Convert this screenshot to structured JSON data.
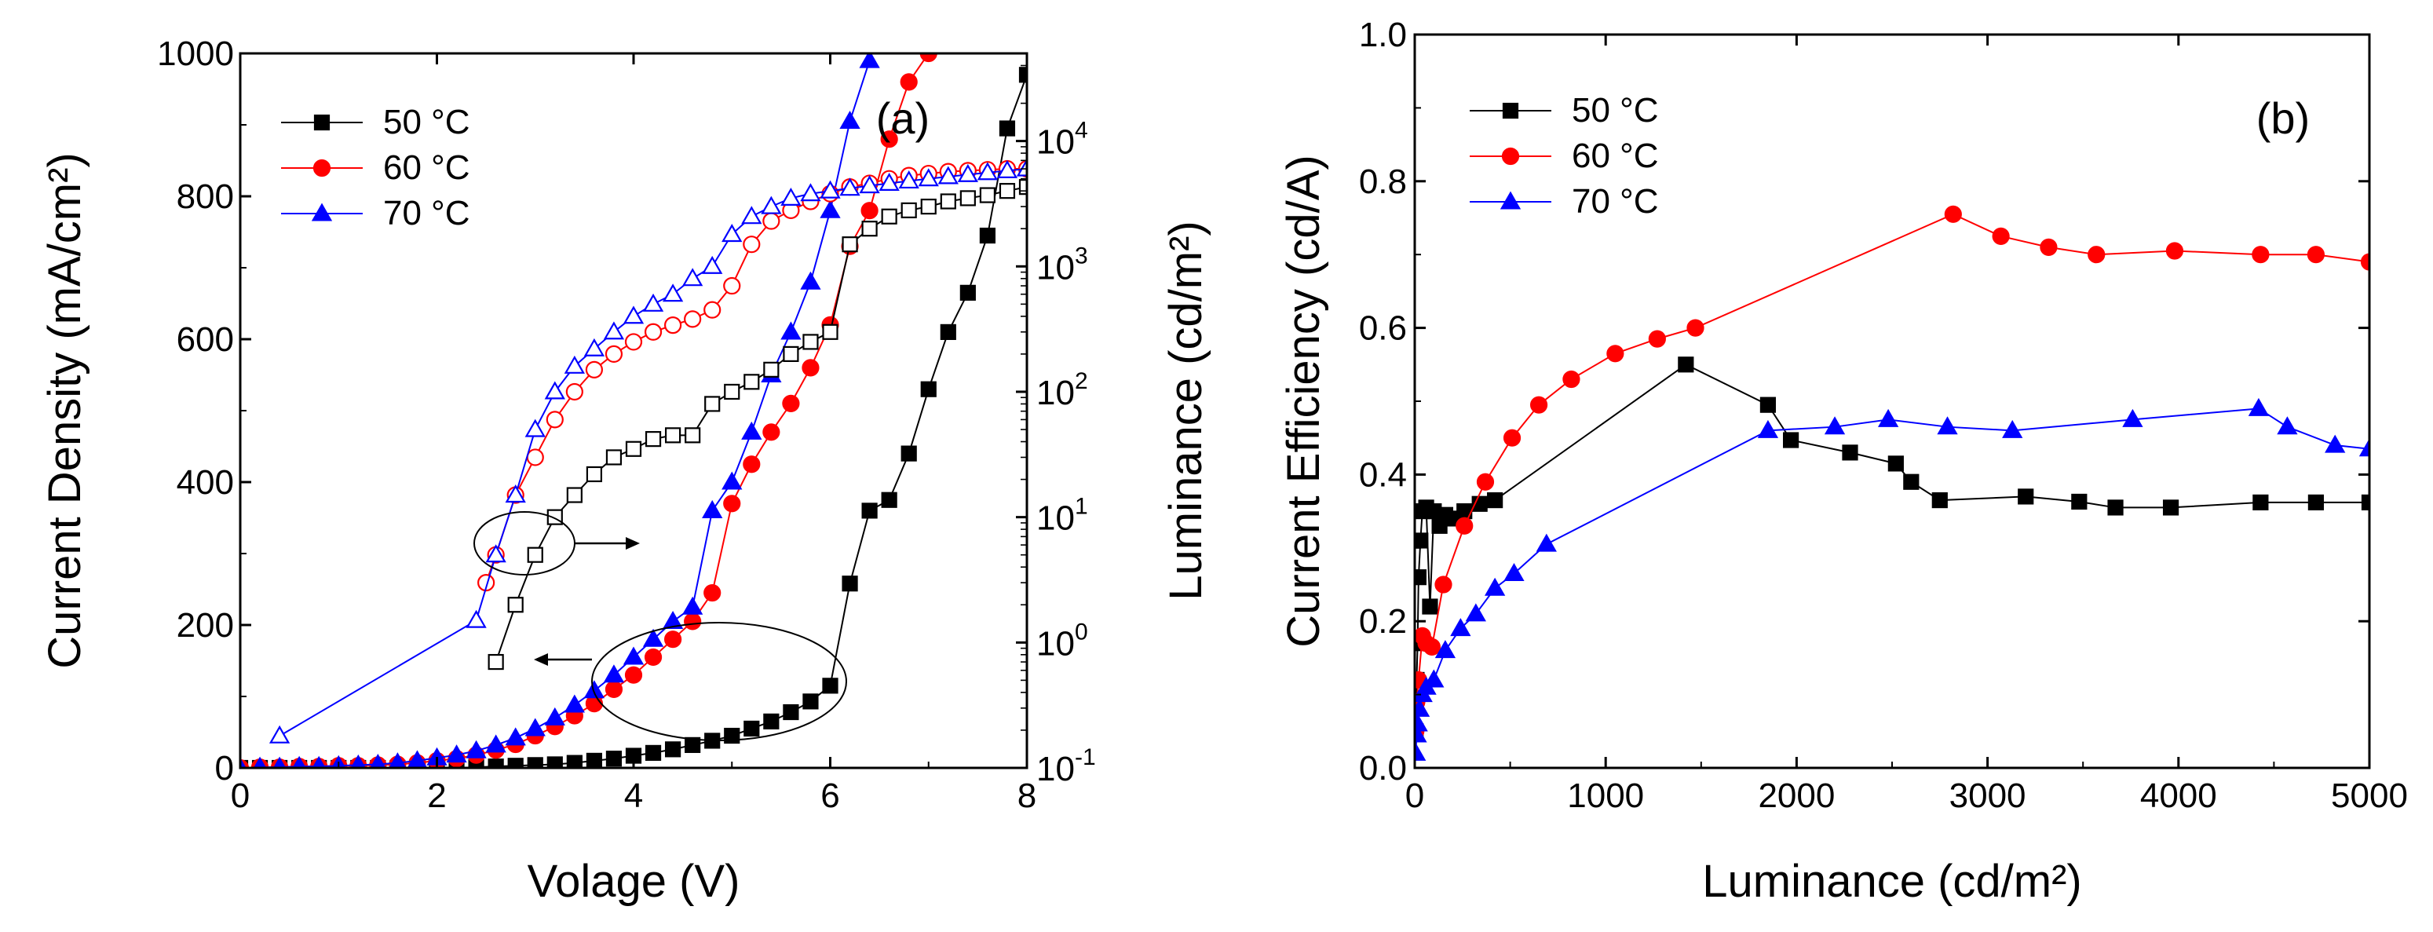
{
  "chart_data": [
    {
      "type": "line",
      "panel_label": "(a)",
      "xlabel": "Volage (V)",
      "ylabel": "Current Density (mA/cm²)",
      "ylabel_right": "Luminance (cd/m²)",
      "xlim": [
        0,
        8
      ],
      "ylim": [
        0,
        1000
      ],
      "ylim_right_log": [
        0.1,
        50000
      ],
      "x_ticks": [
        "0",
        "2",
        "4",
        "6",
        "8"
      ],
      "y_ticks": [
        "0",
        "200",
        "400",
        "600",
        "800",
        "1000"
      ],
      "y_right_ticks": [
        "10",
        "10",
        "10",
        "10",
        "10",
        "10"
      ],
      "y_right_tick_exponents": [
        "-1",
        "0",
        "1",
        "2",
        "3",
        "4"
      ],
      "legend": [
        "50 °C",
        "60 °C",
        "70 °C"
      ],
      "series": [
        {
          "name": "50 °C",
          "color": "#000000",
          "marker": "square",
          "axis": "left",
          "x": [
            0,
            0.2,
            0.4,
            0.6,
            0.8,
            1.0,
            1.2,
            1.4,
            1.6,
            1.8,
            2.0,
            2.2,
            2.4,
            2.6,
            2.8,
            3.0,
            3.2,
            3.4,
            3.6,
            3.8,
            4.0,
            4.2,
            4.4,
            4.6,
            4.8,
            5.0,
            5.2,
            5.4,
            5.6,
            5.8,
            6.0,
            6.2,
            6.4,
            6.6,
            6.8,
            7.0,
            7.2,
            7.4,
            7.6,
            7.8,
            8.0
          ],
          "y": [
            0,
            0,
            0,
            0,
            0,
            0,
            0,
            0,
            0,
            0,
            0,
            0,
            1,
            2,
            3,
            4,
            5,
            7,
            10,
            13,
            17,
            21,
            26,
            32,
            38,
            45,
            55,
            65,
            78,
            93,
            115,
            258,
            360,
            375,
            440,
            530,
            610,
            665,
            745,
            895,
            970
          ]
        },
        {
          "name": "60 °C",
          "color": "#ff0000",
          "marker": "circle",
          "axis": "left",
          "x": [
            0,
            0.2,
            0.4,
            0.6,
            0.8,
            1.0,
            1.2,
            1.4,
            1.6,
            1.8,
            2.0,
            2.2,
            2.4,
            2.6,
            2.8,
            3.0,
            3.2,
            3.4,
            3.6,
            3.8,
            4.0,
            4.2,
            4.4,
            4.6,
            4.8,
            5.0,
            5.2,
            5.4,
            5.6,
            5.8,
            6.0,
            6.2,
            6.4,
            6.6,
            6.8,
            7.0
          ],
          "y": [
            0,
            1,
            1,
            2,
            2,
            3,
            3,
            4,
            5,
            7,
            10,
            13,
            18,
            25,
            33,
            45,
            58,
            73,
            90,
            110,
            130,
            155,
            180,
            205,
            245,
            370,
            425,
            470,
            510,
            560,
            620,
            730,
            780,
            880,
            960,
            1000
          ]
        },
        {
          "name": "70 °C",
          "color": "#0000ff",
          "marker": "triangle",
          "axis": "left",
          "x": [
            0,
            0.2,
            0.4,
            0.6,
            0.8,
            1.0,
            1.2,
            1.4,
            1.6,
            1.8,
            2.0,
            2.2,
            2.4,
            2.6,
            2.8,
            3.0,
            3.2,
            3.4,
            3.6,
            3.8,
            4.0,
            4.2,
            4.4,
            4.6,
            4.8,
            5.0,
            5.2,
            5.4,
            5.6,
            5.8,
            6.0,
            6.2,
            6.4
          ],
          "y": [
            0,
            1,
            1,
            2,
            2,
            3,
            4,
            5,
            7,
            10,
            14,
            18,
            24,
            32,
            42,
            55,
            70,
            88,
            108,
            130,
            155,
            180,
            205,
            225,
            360,
            400,
            470,
            550,
            610,
            680,
            780,
            905,
            990
          ]
        },
        {
          "name": "50 °C luminance",
          "color": "#000000",
          "marker": "open-square",
          "axis": "right",
          "x": [
            2.6,
            2.8,
            3.0,
            3.2,
            3.4,
            3.6,
            3.8,
            4.0,
            4.2,
            4.4,
            4.6,
            4.8,
            5.0,
            5.2,
            5.4,
            5.6,
            5.8,
            6.0,
            6.2,
            6.4,
            6.6,
            6.8,
            7.0,
            7.2,
            7.4,
            7.6,
            7.8,
            8.0
          ],
          "y": [
            0.7,
            2,
            5,
            10,
            15,
            22,
            30,
            35,
            42,
            45,
            45,
            80,
            100,
            120,
            150,
            200,
            250,
            300,
            1500,
            2000,
            2500,
            2800,
            3000,
            3300,
            3500,
            3700,
            4000,
            4300
          ]
        },
        {
          "name": "60 °C luminance",
          "color": "#ff0000",
          "marker": "open-circle",
          "axis": "right",
          "x": [
            2.5,
            2.6,
            2.8,
            3.0,
            3.2,
            3.4,
            3.6,
            3.8,
            4.0,
            4.2,
            4.4,
            4.6,
            4.8,
            5.0,
            5.2,
            5.4,
            5.6,
            5.8,
            6.0,
            6.2,
            6.4,
            6.6,
            6.8,
            7.0,
            7.2,
            7.4,
            7.6,
            7.8,
            8.0
          ],
          "y": [
            3,
            5,
            15,
            30,
            60,
            100,
            150,
            200,
            250,
            300,
            340,
            380,
            450,
            700,
            1500,
            2300,
            2800,
            3300,
            3800,
            4300,
            4600,
            5000,
            5300,
            5500,
            5700,
            5800,
            5900,
            6000,
            6000
          ]
        },
        {
          "name": "70 °C luminance",
          "color": "#0000ff",
          "marker": "open-triangle",
          "axis": "right",
          "x": [
            0.4,
            2.4,
            2.6,
            2.8,
            3.0,
            3.2,
            3.4,
            3.6,
            3.8,
            4.0,
            4.2,
            4.4,
            4.6,
            4.8,
            5.0,
            5.2,
            5.4,
            5.6,
            5.8,
            6.0,
            6.2,
            6.4,
            6.6,
            6.8,
            7.0,
            7.2,
            7.4,
            7.6,
            7.8,
            8.0
          ],
          "y": [
            0.18,
            1.5,
            5,
            15,
            50,
            100,
            160,
            220,
            300,
            400,
            500,
            600,
            800,
            1000,
            1800,
            2500,
            3000,
            3500,
            3800,
            4000,
            4200,
            4400,
            4600,
            4800,
            5000,
            5200,
            5400,
            5600,
            5800,
            6000
          ]
        }
      ]
    },
    {
      "type": "line",
      "panel_label": "(b)",
      "xlabel": "Luminance (cd/m²)",
      "ylabel": "Current Efficiency (cd/A)",
      "xlim": [
        0,
        5000
      ],
      "ylim": [
        0,
        1.0
      ],
      "x_ticks": [
        "0",
        "1000",
        "2000",
        "3000",
        "4000",
        "5000"
      ],
      "y_ticks": [
        "0.0",
        "0.2",
        "0.4",
        "0.6",
        "0.8",
        "1.0"
      ],
      "legend": [
        "50 °C",
        "60 °C",
        "70 °C"
      ],
      "series": [
        {
          "name": "50 °C",
          "color": "#000000",
          "marker": "square",
          "x": [
            5,
            10,
            15,
            20,
            30,
            40,
            60,
            80,
            100,
            130,
            160,
            200,
            260,
            340,
            420,
            1420,
            1850,
            1970,
            2280,
            2520,
            2600,
            2750,
            3200,
            3480,
            3670,
            3960,
            4430,
            4720,
            5000
          ],
          "y": [
            0.05,
            0.12,
            0.17,
            0.26,
            0.31,
            0.35,
            0.355,
            0.22,
            0.35,
            0.33,
            0.345,
            0.34,
            0.35,
            0.36,
            0.365,
            0.55,
            0.495,
            0.447,
            0.43,
            0.415,
            0.39,
            0.365,
            0.37,
            0.363,
            0.355,
            0.355,
            0.362,
            0.362,
            0.362
          ]
        },
        {
          "name": "60 °C",
          "color": "#ff0000",
          "marker": "circle",
          "x": [
            5,
            10,
            20,
            40,
            60,
            90,
            150,
            260,
            370,
            510,
            650,
            820,
            1050,
            1270,
            1470,
            2820,
            3070,
            3320,
            3570,
            3980,
            4430,
            4720,
            5000
          ],
          "y": [
            0.05,
            0.09,
            0.12,
            0.18,
            0.17,
            0.165,
            0.25,
            0.33,
            0.39,
            0.45,
            0.495,
            0.53,
            0.565,
            0.585,
            0.6,
            0.755,
            0.725,
            0.71,
            0.7,
            0.705,
            0.7,
            0.7,
            0.69
          ]
        },
        {
          "name": "70 °C",
          "color": "#0000ff",
          "marker": "triangle",
          "x": [
            5,
            10,
            15,
            25,
            40,
            60,
            100,
            160,
            240,
            320,
            420,
            520,
            690,
            1850,
            2200,
            2480,
            2790,
            3130,
            3760,
            4420,
            4570,
            4820,
            5000
          ],
          "y": [
            0.02,
            0.045,
            0.06,
            0.08,
            0.1,
            0.11,
            0.12,
            0.16,
            0.19,
            0.21,
            0.245,
            0.265,
            0.305,
            0.46,
            0.465,
            0.475,
            0.465,
            0.46,
            0.475,
            0.49,
            0.465,
            0.44,
            0.435
          ]
        }
      ]
    }
  ]
}
